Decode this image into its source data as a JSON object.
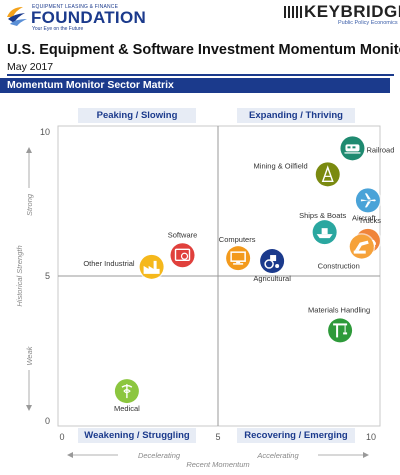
{
  "header": {
    "left_logo": {
      "small_text": "EQUIPMENT LEASING & FINANCE",
      "name": "FOUNDATION",
      "tagline": "Your Eye on the Future"
    },
    "right_logo": {
      "name": "KEYBRIDGE",
      "sub": "Public Policy Economics"
    },
    "title": "U.S. Equipment & Software Investment Momentum Monitor",
    "date": "May 2017"
  },
  "section": {
    "title": "Momentum Monitor Sector Matrix"
  },
  "quadrants": {
    "top_left": "Peaking / Slowing",
    "top_right": "Expanding / Thriving",
    "bottom_left": "Weakening / Struggling",
    "bottom_right": "Recovering / Emerging"
  },
  "colors": {
    "brand_blue": "#1b3a8c",
    "quadrant_box": "#e7ecf5",
    "grid_line": "#b9b9b9"
  },
  "chart_data": {
    "type": "scatter",
    "xlabel": "Recent Momentum",
    "ylabel": "Historical Strength",
    "xlim": [
      0,
      10
    ],
    "ylim": [
      0,
      10
    ],
    "x_ticks": [
      "0",
      "5",
      "10"
    ],
    "y_ticks": [
      "0",
      "5",
      "10"
    ],
    "x_direction_labels": [
      "Decelerating",
      "Accelerating"
    ],
    "y_direction_labels": [
      "Weak",
      "Strong"
    ],
    "grid": false,
    "points": [
      {
        "label": "Railroad",
        "x": 9.4,
        "y": 9.4,
        "color": "#1f8a70",
        "icon": "train-icon"
      },
      {
        "label": "Mining & Oilfield",
        "x": 8.6,
        "y": 8.5,
        "color": "#7a8a10",
        "icon": "oil-derrick-icon"
      },
      {
        "label": "Aircraft",
        "x": 9.9,
        "y": 7.6,
        "color": "#4aa3d8",
        "icon": "airplane-icon"
      },
      {
        "label": "Ships & Boats",
        "x": 8.5,
        "y": 6.5,
        "color": "#2aa7a0",
        "icon": "ship-icon"
      },
      {
        "label": "Trucks",
        "x": 9.9,
        "y": 6.2,
        "color": "#f0843a",
        "icon": "truck-icon"
      },
      {
        "label": "Construction",
        "x": 9.7,
        "y": 6.0,
        "color": "#f6a23a",
        "icon": "construction-icon"
      },
      {
        "label": "Computers",
        "x": 5.7,
        "y": 5.6,
        "color": "#f39a1c",
        "icon": "computer-icon"
      },
      {
        "label": "Agricultural",
        "x": 6.8,
        "y": 5.5,
        "color": "#1b3a8c",
        "icon": "tractor-icon"
      },
      {
        "label": "Software",
        "x": 3.9,
        "y": 5.7,
        "color": "#e0403c",
        "icon": "software-icon"
      },
      {
        "label": "Other Industrial",
        "x": 2.9,
        "y": 5.3,
        "color": "#f5b81c",
        "icon": "factory-icon"
      },
      {
        "label": "Materials Handling",
        "x": 9.0,
        "y": 3.1,
        "color": "#2e9a3a",
        "icon": "crane-icon"
      },
      {
        "label": "Medical",
        "x": 2.1,
        "y": 1.0,
        "color": "#8cc63f",
        "icon": "caduceus-icon"
      }
    ]
  }
}
